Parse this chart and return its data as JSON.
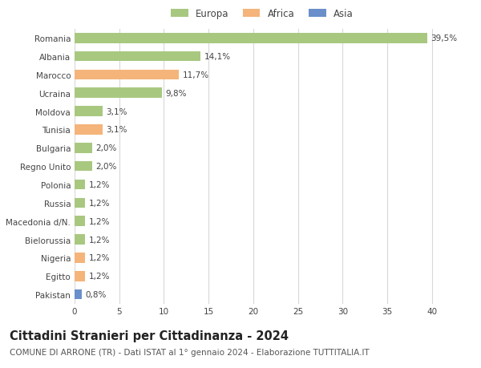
{
  "categories": [
    "Romania",
    "Albania",
    "Marocco",
    "Ucraina",
    "Moldova",
    "Tunisia",
    "Bulgaria",
    "Regno Unito",
    "Polonia",
    "Russia",
    "Macedonia d/N.",
    "Bielorussia",
    "Nigeria",
    "Egitto",
    "Pakistan"
  ],
  "values": [
    39.5,
    14.1,
    11.7,
    9.8,
    3.1,
    3.1,
    2.0,
    2.0,
    1.2,
    1.2,
    1.2,
    1.2,
    1.2,
    1.2,
    0.8
  ],
  "labels": [
    "39,5%",
    "14,1%",
    "11,7%",
    "9,8%",
    "3,1%",
    "3,1%",
    "2,0%",
    "2,0%",
    "1,2%",
    "1,2%",
    "1,2%",
    "1,2%",
    "1,2%",
    "1,2%",
    "0,8%"
  ],
  "colors": [
    "#a8c880",
    "#a8c880",
    "#f5b47a",
    "#a8c880",
    "#a8c880",
    "#f5b47a",
    "#a8c880",
    "#a8c880",
    "#a8c880",
    "#a8c880",
    "#a8c880",
    "#a8c880",
    "#f5b47a",
    "#f5b47a",
    "#6a8fca"
  ],
  "legend_labels": [
    "Europa",
    "Africa",
    "Asia"
  ],
  "legend_colors": [
    "#a8c880",
    "#f5b47a",
    "#6a8fca"
  ],
  "title": "Cittadini Stranieri per Cittadinanza - 2024",
  "subtitle": "COMUNE DI ARRONE (TR) - Dati ISTAT al 1° gennaio 2024 - Elaborazione TUTTITALIA.IT",
  "xlim": [
    0,
    42
  ],
  "xticks": [
    0,
    5,
    10,
    15,
    20,
    25,
    30,
    35,
    40
  ],
  "background_color": "#ffffff",
  "grid_color": "#d8d8d8",
  "bar_height": 0.55,
  "title_fontsize": 10.5,
  "subtitle_fontsize": 7.5,
  "label_fontsize": 7.5,
  "tick_fontsize": 7.5,
  "legend_fontsize": 8.5
}
